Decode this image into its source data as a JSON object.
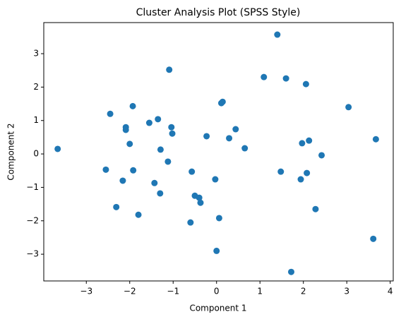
{
  "chart_data": {
    "type": "scatter",
    "title": "Cluster Analysis Plot (SPSS Style)",
    "x_label": "Component 1",
    "y_label": "Component 2",
    "color": "#1f77b4",
    "x": [
      -3.66,
      -2.45,
      -1.93,
      -2.09,
      -2.09,
      -2.0,
      -2.55,
      -1.92,
      -2.16,
      -2.31,
      -1.8,
      -1.55,
      -1.35,
      -1.29,
      -1.43,
      -1.3,
      -1.12,
      -1.09,
      -1.04,
      -1.02,
      -0.57,
      -0.5,
      -0.6,
      -0.4,
      -0.37,
      -0.23,
      -0.03,
      0.11,
      0.14,
      0.06,
      0.0,
      0.29,
      0.44,
      0.65,
      1.09,
      1.4,
      1.6,
      1.48,
      1.72,
      2.06,
      3.04,
      1.97,
      2.13,
      1.94,
      2.08,
      2.42,
      2.28,
      3.67,
      3.61
    ],
    "values": [
      0.15,
      1.2,
      1.43,
      0.8,
      0.72,
      0.3,
      -0.47,
      -0.49,
      -0.8,
      -1.59,
      -1.82,
      0.93,
      1.04,
      0.13,
      -0.87,
      -1.18,
      -0.23,
      2.52,
      0.8,
      0.61,
      -0.53,
      -1.25,
      -2.05,
      -1.31,
      -1.46,
      0.53,
      -0.76,
      1.52,
      1.56,
      -1.92,
      -2.9,
      0.47,
      0.74,
      0.17,
      2.3,
      3.57,
      2.26,
      -0.53,
      -3.53,
      2.09,
      1.4,
      0.32,
      0.4,
      -0.76,
      -0.57,
      -0.04,
      -1.65,
      0.44,
      -2.54
    ],
    "xlim": [
      -3.98,
      4.07
    ],
    "ylim": [
      -3.8,
      3.93
    ],
    "xticks": [
      {
        "value": -3,
        "label": "−3"
      },
      {
        "value": -2,
        "label": "−2"
      },
      {
        "value": -1,
        "label": "−1"
      },
      0,
      1,
      2,
      3,
      4
    ],
    "yticks": [
      {
        "value": -3,
        "label": "−3"
      },
      {
        "value": -2,
        "label": "−2"
      },
      {
        "value": -1,
        "label": "−1"
      },
      0,
      1,
      2,
      3
    ]
  }
}
